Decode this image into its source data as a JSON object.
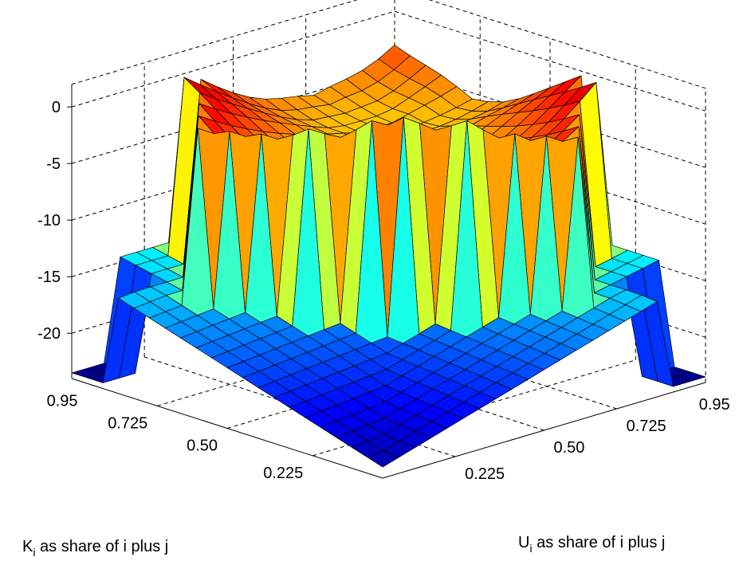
{
  "chart_data": {
    "type": "surface",
    "zlim": [
      -24,
      2
    ],
    "z_ticks": [
      "0",
      "-5",
      "-10",
      "-15",
      "-20"
    ],
    "z_tick_values": [
      0,
      -5,
      -10,
      -15,
      -20
    ],
    "k_ticks": [
      "0.95",
      "0.725",
      "0.50",
      "0.225"
    ],
    "u_ticks": [
      "0.95",
      "0.725",
      "0.50",
      "0.225"
    ],
    "k_tick_values": [
      0.95,
      0.725,
      0.5,
      0.225
    ],
    "u_tick_values": [
      0.95,
      0.725,
      0.5,
      0.225
    ],
    "xlabel": "K",
    "xlabel_sub": "i",
    "xlabel_rest": " as share of i plus j",
    "ylabel": "U",
    "ylabel_sub": "i",
    "ylabel_rest": " as share of i plus j",
    "grid": true,
    "colormap": "jet",
    "grid_size": 21,
    "range": [
      0,
      1
    ],
    "plateau_shape": "diamond",
    "plateau_center": [
      0.75,
      0.75
    ],
    "plateau_half_width": 0.65,
    "plateau_level_min": 0,
    "plateau_level_max": -6.5,
    "terrace_levels": {
      "inner": -10.5,
      "outer": -11.5,
      "dip": -13.5
    },
    "mid_ridge": {
      "top": -7,
      "bottom": -18
    },
    "bowl_bottom": -20.5,
    "blue_corner_level": -23.5
  }
}
